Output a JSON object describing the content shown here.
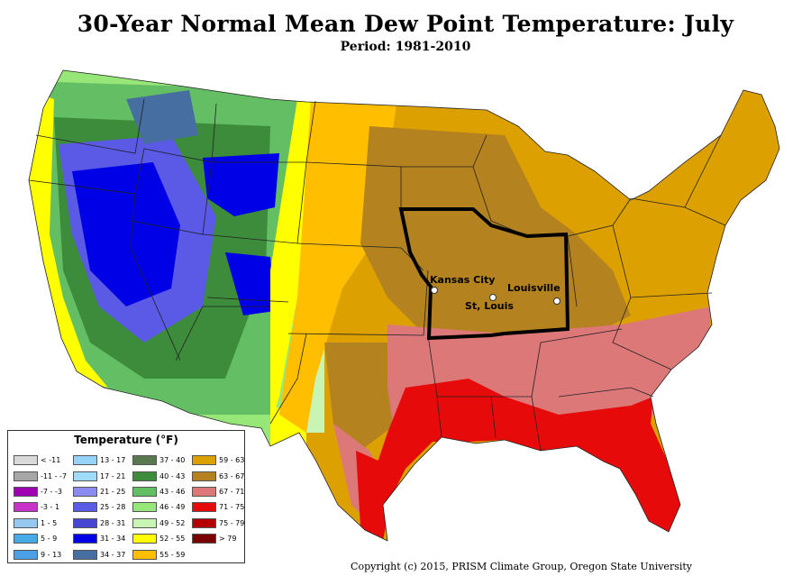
{
  "title": "30-Year Normal Mean Dew Point Temperature: July",
  "subtitle": "Period: 1981-2010",
  "legend": {
    "title": "Temperature (°F)",
    "items": [
      {
        "label": "< -11",
        "color": "#d9d9d9"
      },
      {
        "label": "-11 - -7",
        "color": "#a6a6a6"
      },
      {
        "label": "-7 - -3",
        "color": "#a000b4"
      },
      {
        "label": "-3 - 1",
        "color": "#c832c8"
      },
      {
        "label": "1 - 5",
        "color": "#96c8f0"
      },
      {
        "label": "5 - 9",
        "color": "#46aae6"
      },
      {
        "label": "9 - 13",
        "color": "#4ba0e6"
      },
      {
        "label": "13 - 17",
        "color": "#96d2fa"
      },
      {
        "label": "17 - 21",
        "color": "#a0dcfa"
      },
      {
        "label": "21 - 25",
        "color": "#8c8cf0"
      },
      {
        "label": "25 - 28",
        "color": "#5a5ae6"
      },
      {
        "label": "28 - 31",
        "color": "#4646d2"
      },
      {
        "label": "31 - 34",
        "color": "#0000e6"
      },
      {
        "label": "34 - 37",
        "color": "#466ea0"
      },
      {
        "label": "37 - 40",
        "color": "#5a7850"
      },
      {
        "label": "40 - 43",
        "color": "#3c8c3c"
      },
      {
        "label": "43 - 46",
        "color": "#64be64"
      },
      {
        "label": "46 - 49",
        "color": "#96e678"
      },
      {
        "label": "49 - 52",
        "color": "#c8f5b4"
      },
      {
        "label": "52 - 55",
        "color": "#ffff00"
      },
      {
        "label": "55 - 59",
        "color": "#ffbe00"
      },
      {
        "label": "59 - 63",
        "color": "#dca000"
      },
      {
        "label": "63 - 67",
        "color": "#b4821e"
      },
      {
        "label": "67 - 71",
        "color": "#dc7878"
      },
      {
        "label": "71 - 75",
        "color": "#e60a0a"
      },
      {
        "label": "75 - 79",
        "color": "#b40000"
      },
      {
        "label": "> 79",
        "color": "#780000"
      }
    ]
  },
  "cities": {
    "kansas_city": "Kansas City",
    "st_louis": "St, Louis",
    "louisville": "Louisville"
  },
  "copyright": "Copyright (c) 2015, PRISM Climate Group, Oregon State University"
}
